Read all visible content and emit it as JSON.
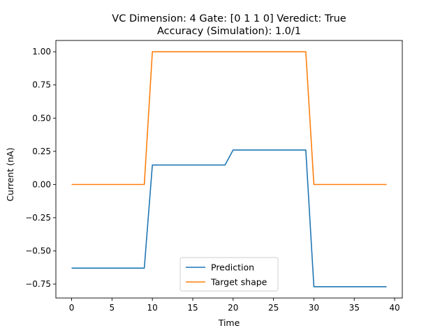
{
  "chart_data": {
    "type": "line",
    "title_line1": "VC Dimension: 4 Gate: [0 1 1 0] Veredict: True",
    "title_line2": "Accuracy (Simulation): 1.0/1",
    "xlabel": "Time",
    "ylabel": "Current (nA)",
    "xlim": [
      -1.95,
      40.95
    ],
    "ylim": [
      -0.855,
      1.085
    ],
    "xticks": [
      0,
      5,
      10,
      15,
      20,
      25,
      30,
      35,
      40
    ],
    "yticks": [
      -0.75,
      -0.5,
      -0.25,
      0.0,
      0.25,
      0.5,
      0.75,
      1.0
    ],
    "ytick_labels": [
      "−0.75",
      "−0.50",
      "−0.25",
      "0.00",
      "0.25",
      "0.50",
      "0.75",
      "1.00"
    ],
    "legend_position": "lower center",
    "series": [
      {
        "name": "Prediction",
        "color": "#1f77b4",
        "points": [
          [
            0,
            -0.63
          ],
          [
            9,
            -0.63
          ],
          [
            10,
            0.147
          ],
          [
            19,
            0.147
          ],
          [
            20,
            0.26
          ],
          [
            29,
            0.26
          ],
          [
            30,
            -0.77
          ],
          [
            39,
            -0.77
          ]
        ]
      },
      {
        "name": "Target shape",
        "color": "#ff7f0e",
        "points": [
          [
            0,
            0.0
          ],
          [
            9,
            0.0
          ],
          [
            10,
            1.0
          ],
          [
            29,
            1.0
          ],
          [
            30,
            0.0
          ],
          [
            39,
            0.0
          ]
        ]
      }
    ]
  }
}
